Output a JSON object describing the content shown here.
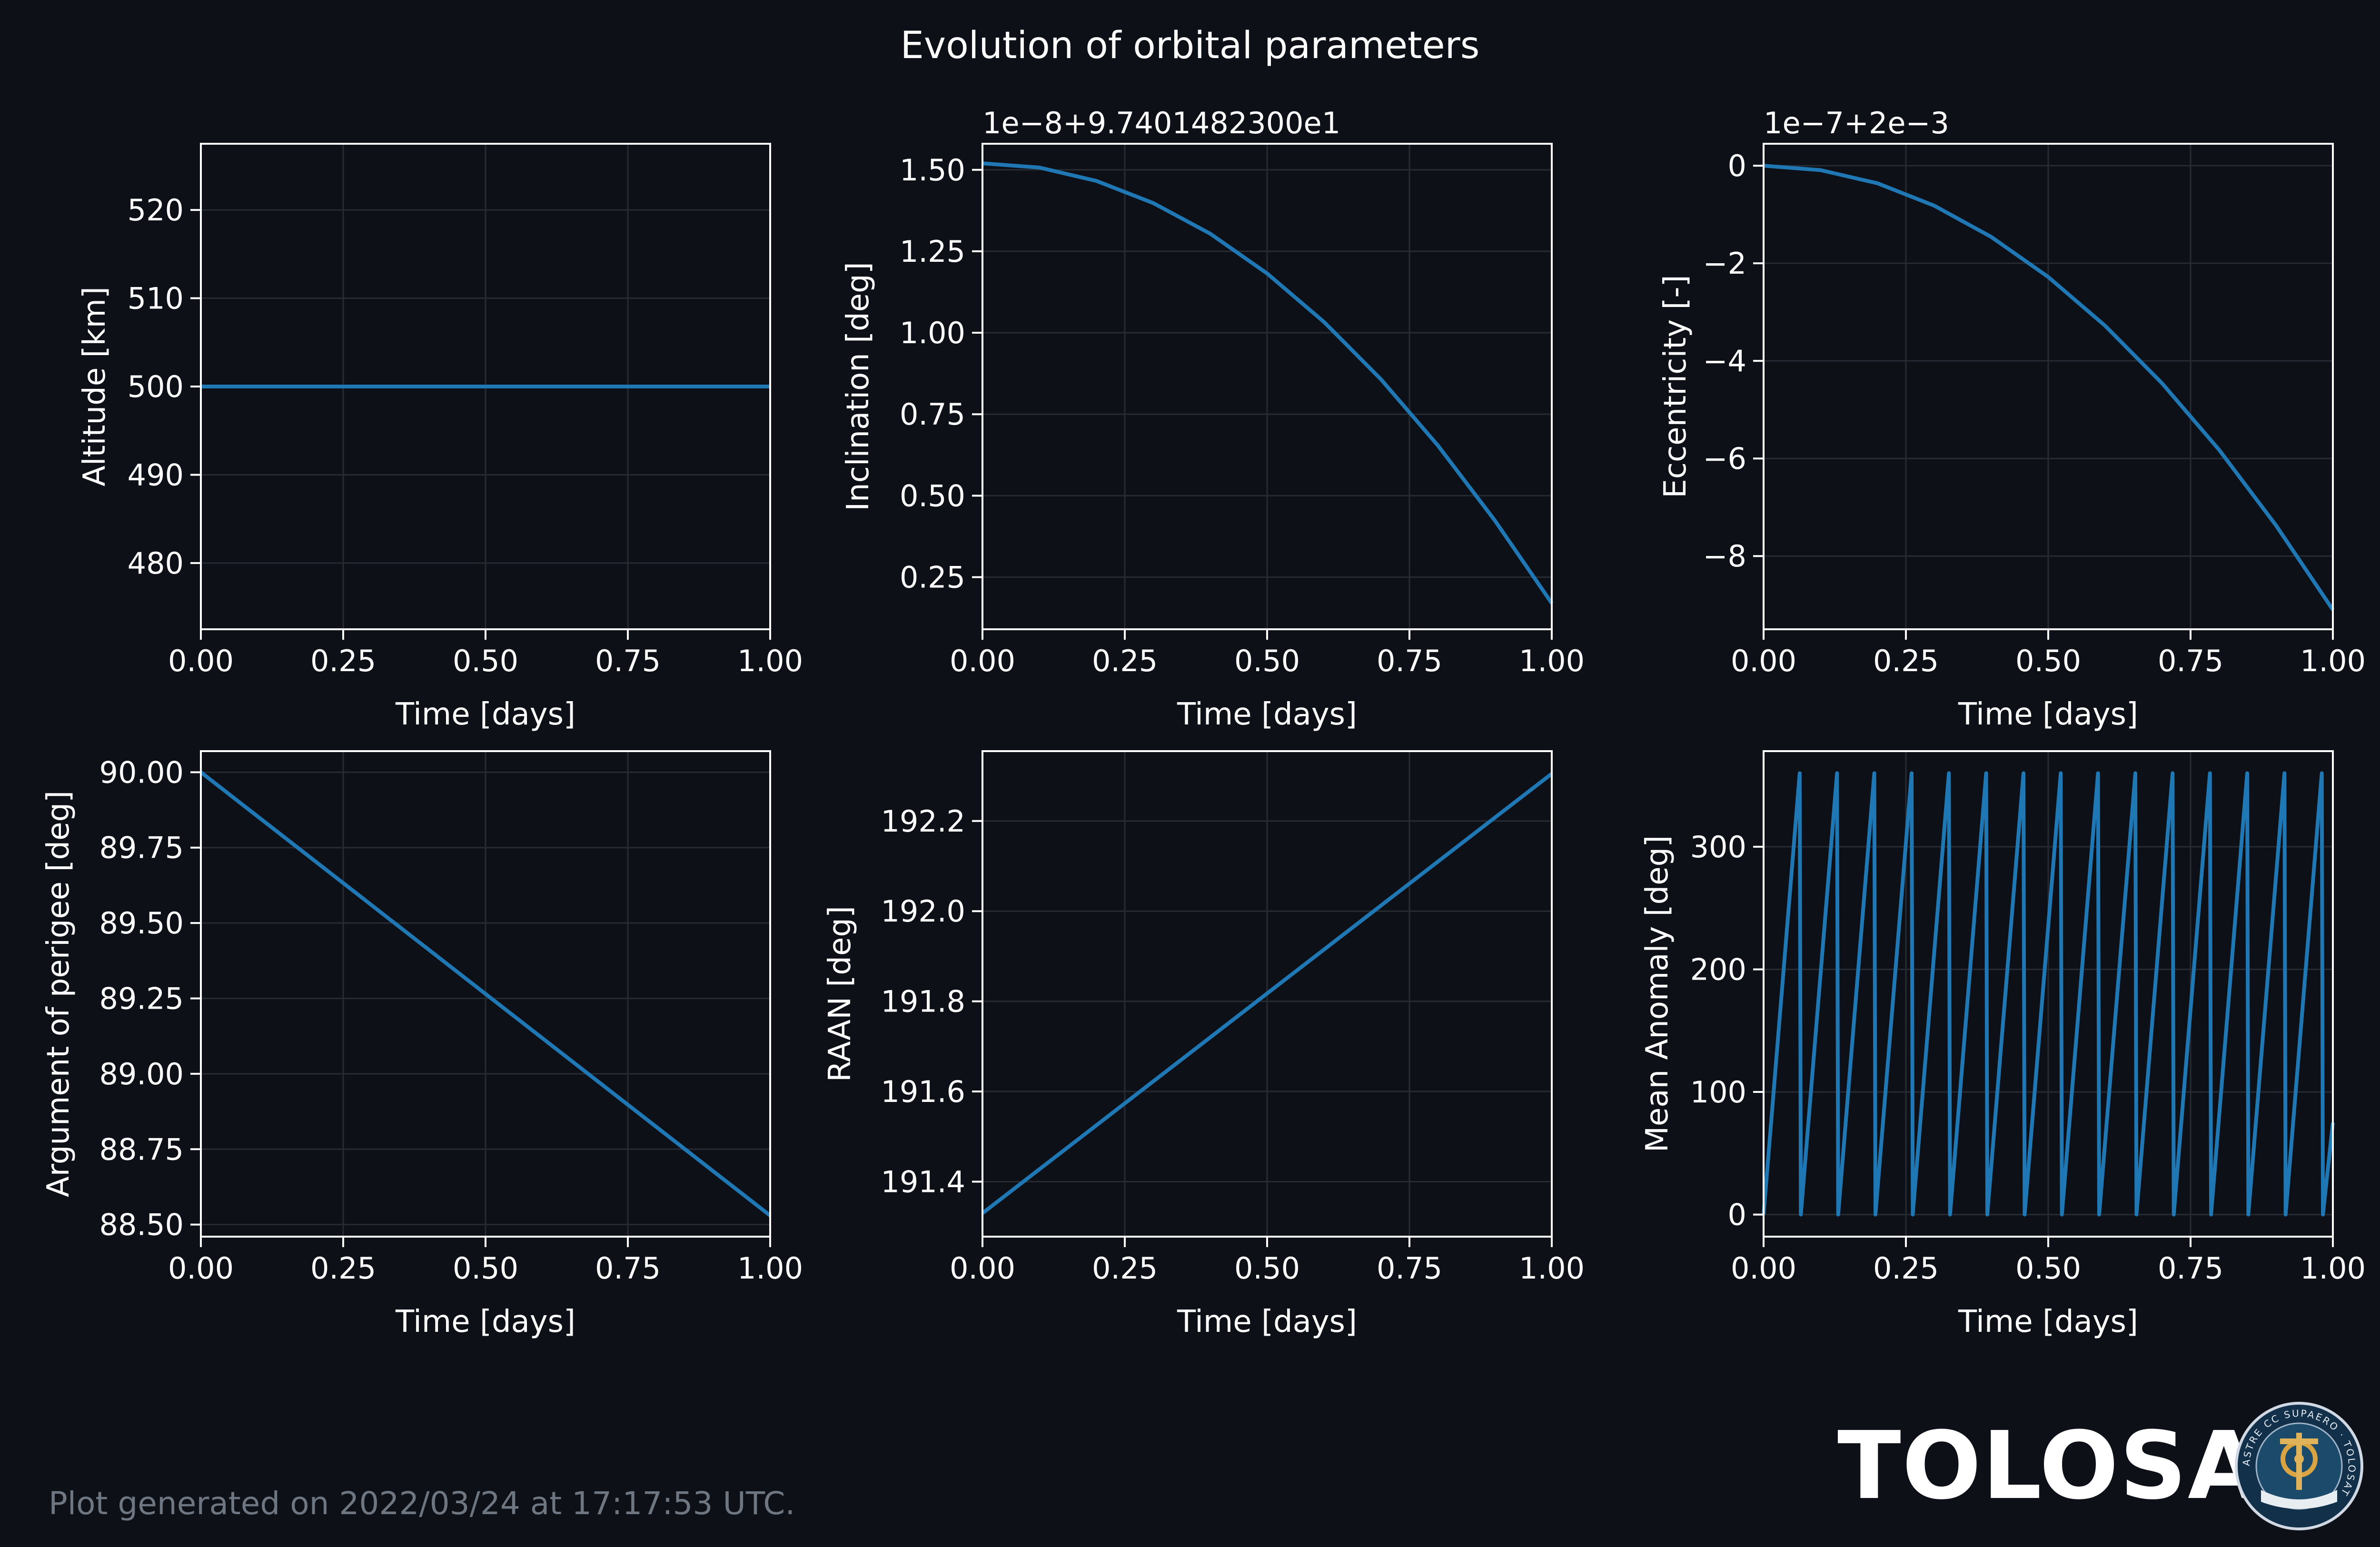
{
  "figure": {
    "title": "Evolution of orbital parameters",
    "footnote": "Plot generated on 2022/03/24 at 17:17:53 UTC.",
    "brand": "TOLOSAT",
    "logo_ring_text": "ASTRE CC SUPAERO · TOLOSAT",
    "colors": {
      "background": "#0d1117",
      "line": "#1f77b4",
      "text": "#ffffff",
      "grid": "#262b33",
      "footnote": "#6e7681"
    }
  },
  "chart_data": [
    {
      "id": "altitude",
      "type": "line",
      "xlabel": "Time [days]",
      "ylabel": "Altitude [km]",
      "offset_text": "",
      "xlim": [
        0,
        1.0
      ],
      "ylim": [
        472.5,
        527.5
      ],
      "xticks": [
        0,
        0.25,
        0.5,
        0.75,
        1.0
      ],
      "xticklabels": [
        "0.00",
        "0.25",
        "0.50",
        "0.75",
        "1.00"
      ],
      "yticks": [
        480,
        490,
        500,
        510,
        520
      ],
      "yticklabels": [
        "480",
        "490",
        "500",
        "510",
        "520"
      ],
      "grid": true,
      "series": [
        {
          "x": [
            0,
            1.0
          ],
          "y": [
            500,
            500
          ]
        }
      ]
    },
    {
      "id": "inclination",
      "type": "line",
      "xlabel": "Time [days]",
      "ylabel": "Inclination [deg]",
      "offset_text": "1e−8+9.7401482300e1",
      "xlim": [
        0,
        1.0
      ],
      "ylim": [
        0.09,
        1.58
      ],
      "xticks": [
        0,
        0.25,
        0.5,
        0.75,
        1.0
      ],
      "xticklabels": [
        "0.00",
        "0.25",
        "0.50",
        "0.75",
        "1.00"
      ],
      "yticks": [
        0.25,
        0.5,
        0.75,
        1.0,
        1.25,
        1.5
      ],
      "yticklabels": [
        "0.25",
        "0.50",
        "0.75",
        "1.00",
        "1.25",
        "1.50"
      ],
      "grid": true,
      "series": [
        {
          "x": [
            0,
            0.1,
            0.2,
            0.3,
            0.4,
            0.5,
            0.6,
            0.7,
            0.8,
            0.9,
            1.0
          ],
          "y": [
            1.52,
            1.507,
            1.466,
            1.398,
            1.304,
            1.182,
            1.033,
            0.857,
            0.654,
            0.424,
            0.17
          ]
        }
      ]
    },
    {
      "id": "eccentricity",
      "type": "line",
      "xlabel": "Time [days]",
      "ylabel": "Eccentricity [-]",
      "offset_text": "1e−7+2e−3",
      "xlim": [
        0,
        1.0
      ],
      "ylim": [
        -9.5,
        0.45
      ],
      "xticks": [
        0,
        0.25,
        0.5,
        0.75,
        1.0
      ],
      "xticklabels": [
        "0.00",
        "0.25",
        "0.50",
        "0.75",
        "1.00"
      ],
      "yticks": [
        -8,
        -6,
        -4,
        -2,
        0
      ],
      "yticklabels": [
        "−8",
        "−6",
        "−4",
        "−2",
        "0"
      ],
      "grid": true,
      "series": [
        {
          "x": [
            0,
            0.1,
            0.2,
            0.3,
            0.4,
            0.5,
            0.6,
            0.7,
            0.8,
            0.9,
            1.0
          ],
          "y": [
            0,
            -0.09,
            -0.36,
            -0.82,
            -1.46,
            -2.28,
            -3.28,
            -4.46,
            -5.82,
            -7.37,
            -9.1
          ]
        }
      ]
    },
    {
      "id": "argument-of-perigee",
      "type": "line",
      "xlabel": "Time [days]",
      "ylabel": "Argument of perigee [deg]",
      "offset_text": "",
      "xlim": [
        0,
        1.0
      ],
      "ylim": [
        88.46,
        90.07
      ],
      "xticks": [
        0,
        0.25,
        0.5,
        0.75,
        1.0
      ],
      "xticklabels": [
        "0.00",
        "0.25",
        "0.50",
        "0.75",
        "1.00"
      ],
      "yticks": [
        88.5,
        88.75,
        89.0,
        89.25,
        89.5,
        89.75,
        90.0
      ],
      "yticklabels": [
        "88.50",
        "88.75",
        "89.00",
        "89.25",
        "89.50",
        "89.75",
        "90.00"
      ],
      "grid": true,
      "series": [
        {
          "x": [
            0,
            1.0
          ],
          "y": [
            90.0,
            88.53
          ]
        }
      ]
    },
    {
      "id": "raan",
      "type": "line",
      "xlabel": "Time [days]",
      "ylabel": "RAAN [deg]",
      "offset_text": "",
      "xlim": [
        0,
        1.0
      ],
      "ylim": [
        191.278,
        192.355
      ],
      "xticks": [
        0,
        0.25,
        0.5,
        0.75,
        1.0
      ],
      "xticklabels": [
        "0.00",
        "0.25",
        "0.50",
        "0.75",
        "1.00"
      ],
      "yticks": [
        191.4,
        191.6,
        191.8,
        192.0,
        192.2
      ],
      "yticklabels": [
        "191.4",
        "191.6",
        "191.8",
        "192.0",
        "192.2"
      ],
      "grid": true,
      "series": [
        {
          "x": [
            0,
            1.0
          ],
          "y": [
            191.33,
            192.305
          ]
        }
      ]
    },
    {
      "id": "mean-anomaly",
      "type": "line",
      "xlabel": "Time [days]",
      "ylabel": "Mean Anomaly [deg]",
      "offset_text": "",
      "xlim": [
        0,
        1.0
      ],
      "ylim": [
        -18,
        378
      ],
      "xticks": [
        0,
        0.25,
        0.5,
        0.75,
        1.0
      ],
      "xticklabels": [
        "0.00",
        "0.25",
        "0.50",
        "0.75",
        "1.00"
      ],
      "yticks": [
        0,
        100,
        200,
        300
      ],
      "yticklabels": [
        "0",
        "100",
        "200",
        "300"
      ],
      "grid": true,
      "series": [
        {
          "x": [
            0,
            0.0635,
            0.0655,
            0.129,
            0.131,
            0.1945,
            0.1965,
            0.26,
            0.262,
            0.3255,
            0.3275,
            0.391,
            0.393,
            0.4565,
            0.4585,
            0.522,
            0.524,
            0.5875,
            0.5895,
            0.653,
            0.655,
            0.7185,
            0.7205,
            0.784,
            0.786,
            0.8495,
            0.8515,
            0.915,
            0.917,
            0.9805,
            0.9825,
            1.0
          ],
          "y": [
            0,
            360,
            0,
            360,
            0,
            360,
            0,
            360,
            0,
            360,
            0,
            360,
            0,
            360,
            0,
            360,
            0,
            360,
            0,
            360,
            0,
            360,
            0,
            360,
            0,
            360,
            0,
            360,
            0,
            360,
            0,
            75
          ]
        }
      ]
    }
  ]
}
